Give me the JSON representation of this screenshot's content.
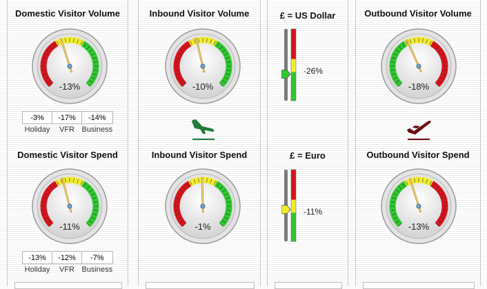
{
  "panels": {
    "domestic": {
      "volume": {
        "title": "Domestic Visitor Volume",
        "pct": "-13%",
        "needle_value": -13
      },
      "breakdown_top": {
        "values": [
          "-3%",
          "-17%",
          "-14%"
        ],
        "labels": [
          "Holiday",
          "VFR",
          "Business"
        ]
      },
      "spend": {
        "title": "Domestic Visitor Spend",
        "pct": "-11%",
        "needle_value": -11
      },
      "breakdown_bottom": {
        "values": [
          "-13%",
          "-12%",
          "-7%"
        ],
        "labels": [
          "Holiday",
          "VFR",
          "Business"
        ]
      }
    },
    "inbound": {
      "volume": {
        "title": "Inbound Visitor Volume",
        "pct": "-10%",
        "needle_value": -10
      },
      "icon": "plane-landing-icon",
      "spend": {
        "title": "Inbound Visitor Spend",
        "pct": "-1%",
        "needle_value": -1
      }
    },
    "currency": {
      "usd": {
        "title": "£ = US Dollar",
        "pct": "-26%",
        "level": -26
      },
      "euro": {
        "title": "£ = Euro",
        "pct": "-11%",
        "level": -11
      }
    },
    "outbound": {
      "volume": {
        "title": "Outbound Visitor Volume",
        "pct": "-18%",
        "needle_value": -18
      },
      "icon": "plane-takeoff-icon",
      "spend": {
        "title": "Outbound Visitor Spend",
        "pct": "-13%",
        "needle_value": -13
      }
    }
  },
  "colors": {
    "red": "#d8131b",
    "yellow": "#f2ec2c",
    "green": "#2ec82e",
    "icon_green": "#1f7a3c",
    "icon_maroon": "#6b0f13"
  }
}
